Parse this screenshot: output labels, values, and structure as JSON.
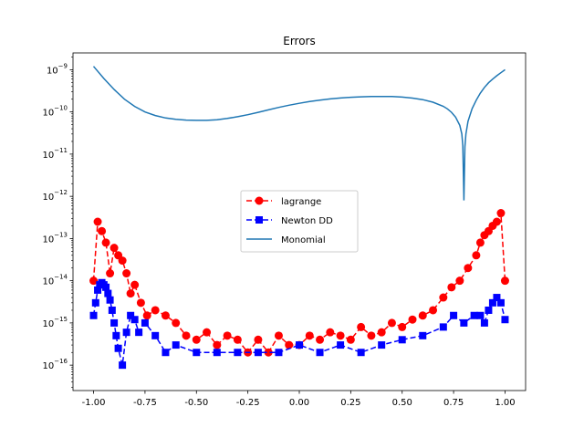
{
  "chart_data": {
    "type": "line",
    "title": "Errors",
    "xlabel": "",
    "ylabel": "",
    "xlim": [
      -1.1,
      1.1
    ],
    "ylim": [
      2.5e-17,
      2.5e-09
    ],
    "yscale": "log",
    "grid": false,
    "legend_position": "center",
    "x_ticks": [
      -1.0,
      -0.75,
      -0.5,
      -0.25,
      0.0,
      0.25,
      0.5,
      0.75,
      1.0
    ],
    "x_tick_labels": [
      "-1.00",
      "-0.75",
      "-0.50",
      "-0.25",
      "0.00",
      "0.25",
      "0.50",
      "0.75",
      "1.00"
    ],
    "y_tick_exponents": [
      -16,
      -15,
      -14,
      -13,
      -12,
      -11,
      -10,
      -9
    ],
    "series": [
      {
        "name": "lagrange",
        "color": "#ff0000",
        "style": "dashed",
        "marker": "circle",
        "x": [
          -1.0,
          -0.98,
          -0.96,
          -0.94,
          -0.92,
          -0.9,
          -0.88,
          -0.86,
          -0.84,
          -0.82,
          -0.8,
          -0.77,
          -0.74,
          -0.7,
          -0.65,
          -0.6,
          -0.55,
          -0.5,
          -0.45,
          -0.4,
          -0.35,
          -0.3,
          -0.25,
          -0.2,
          -0.15,
          -0.1,
          -0.05,
          0.0,
          0.05,
          0.1,
          0.15,
          0.2,
          0.25,
          0.3,
          0.35,
          0.4,
          0.45,
          0.5,
          0.55,
          0.6,
          0.65,
          0.7,
          0.74,
          0.78,
          0.82,
          0.86,
          0.88,
          0.9,
          0.92,
          0.94,
          0.96,
          0.98,
          1.0
        ],
        "y": [
          1e-14,
          2.5e-13,
          1.5e-13,
          8e-14,
          1.5e-14,
          6e-14,
          4e-14,
          3e-14,
          1.5e-14,
          5e-15,
          8e-15,
          3e-15,
          1.5e-15,
          2e-15,
          1.5e-15,
          1e-15,
          5e-16,
          4e-16,
          6e-16,
          3e-16,
          5e-16,
          4e-16,
          2e-16,
          4e-16,
          2e-16,
          5e-16,
          3e-16,
          3e-16,
          5e-16,
          4e-16,
          6e-16,
          5e-16,
          4e-16,
          8e-16,
          5e-16,
          6e-16,
          1e-15,
          8e-16,
          1.2e-15,
          1.5e-15,
          2e-15,
          4e-15,
          7e-15,
          1e-14,
          2e-14,
          4e-14,
          8e-14,
          1.2e-13,
          1.5e-13,
          2e-13,
          2.5e-13,
          4e-13,
          1e-14
        ]
      },
      {
        "name": "Newton DD",
        "color": "#0000ff",
        "style": "dashed",
        "marker": "square",
        "x": [
          -1.0,
          -0.99,
          -0.98,
          -0.97,
          -0.96,
          -0.95,
          -0.94,
          -0.93,
          -0.92,
          -0.91,
          -0.9,
          -0.89,
          -0.88,
          -0.86,
          -0.84,
          -0.82,
          -0.8,
          -0.78,
          -0.75,
          -0.7,
          -0.65,
          -0.6,
          -0.5,
          -0.4,
          -0.3,
          -0.2,
          -0.1,
          0.0,
          0.1,
          0.2,
          0.3,
          0.4,
          0.5,
          0.6,
          0.7,
          0.75,
          0.8,
          0.85,
          0.88,
          0.9,
          0.92,
          0.94,
          0.96,
          0.98,
          1.0
        ],
        "y": [
          1.5e-15,
          3e-15,
          6e-15,
          8e-15,
          9e-15,
          8e-15,
          7e-15,
          5e-15,
          3.5e-15,
          2e-15,
          1e-15,
          5e-16,
          2.5e-16,
          1e-16,
          6e-16,
          1.5e-15,
          1.2e-15,
          6e-16,
          1e-15,
          5e-16,
          2e-16,
          3e-16,
          2e-16,
          2e-16,
          2e-16,
          2e-16,
          2e-16,
          3e-16,
          2e-16,
          3e-16,
          2e-16,
          3e-16,
          4e-16,
          5e-16,
          8e-16,
          1.5e-15,
          1e-15,
          1.5e-15,
          1.5e-15,
          1e-15,
          2e-15,
          3e-15,
          4e-15,
          3e-15,
          1.2e-15
        ]
      },
      {
        "name": "Monomial",
        "color": "#1f77b4",
        "style": "solid",
        "marker": "none",
        "x": [
          -1.0,
          -0.95,
          -0.9,
          -0.85,
          -0.8,
          -0.75,
          -0.7,
          -0.65,
          -0.6,
          -0.55,
          -0.5,
          -0.45,
          -0.4,
          -0.35,
          -0.3,
          -0.25,
          -0.2,
          -0.15,
          -0.1,
          -0.05,
          0.0,
          0.05,
          0.1,
          0.15,
          0.2,
          0.25,
          0.3,
          0.35,
          0.4,
          0.45,
          0.5,
          0.55,
          0.6,
          0.65,
          0.7,
          0.72,
          0.74,
          0.76,
          0.78,
          0.79,
          0.795,
          0.8,
          0.805,
          0.81,
          0.82,
          0.84,
          0.86,
          0.88,
          0.9,
          0.92,
          0.94,
          0.96,
          0.98,
          1.0
        ],
        "y": [
          1.2e-09,
          6.2e-10,
          3.4e-10,
          2e-10,
          1.35e-10,
          1e-10,
          8.2e-11,
          7.2e-11,
          6.7e-11,
          6.4e-11,
          6.3e-11,
          6.3e-11,
          6.5e-11,
          7e-11,
          7.7e-11,
          8.6e-11,
          9.8e-11,
          1.12e-10,
          1.28e-10,
          1.44e-10,
          1.6e-10,
          1.76e-10,
          1.9e-10,
          2.03e-10,
          2.14e-10,
          2.22e-10,
          2.28e-10,
          2.32e-10,
          2.33e-10,
          2.31e-10,
          2.25e-10,
          2.13e-10,
          1.95e-10,
          1.7e-10,
          1.36e-10,
          1.18e-10,
          9.8e-11,
          7.5e-11,
          4.8e-11,
          3e-11,
          1.6e-11,
          8e-13,
          1.5e-11,
          3e-11,
          6e-11,
          1.2e-10,
          1.9e-10,
          2.8e-10,
          3.8e-10,
          4.9e-10,
          6e-10,
          7.2e-10,
          8.5e-10,
          1e-09
        ]
      }
    ]
  }
}
